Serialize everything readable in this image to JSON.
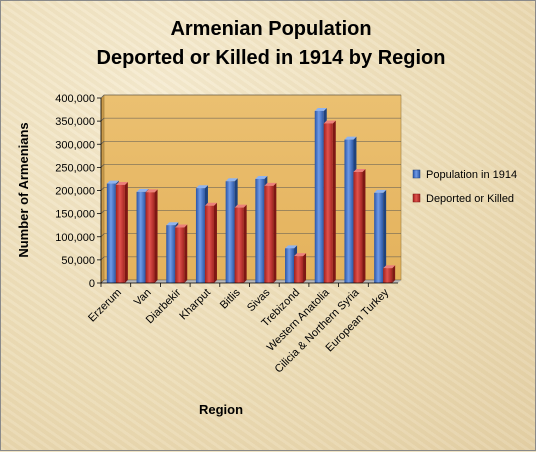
{
  "chart_data": {
    "type": "bar",
    "title_line1": "Armenian Population",
    "title_line2": "Deported or Killed in 1914 by Region",
    "xlabel": "Region",
    "ylabel": "Number of Armenians",
    "ylim": [
      0,
      400000
    ],
    "yticks": [
      "0",
      "50,000",
      "100,000",
      "150,000",
      "200,000",
      "250,000",
      "300,000",
      "350,000",
      "400,000"
    ],
    "categories": [
      "Erzerum",
      "Van",
      "Diarbekir",
      "Kharput",
      "Bitlis",
      "Sivas",
      "Trebizond",
      "Western Anatolia",
      "Cilicia & Northern Syria",
      "European Turkey"
    ],
    "series": [
      {
        "name": "Population in 1914",
        "color": "#3b6fc4",
        "values": [
          215000,
          197000,
          125000,
          205000,
          220000,
          225000,
          75000,
          372000,
          310000,
          195000
        ]
      },
      {
        "name": "Deported or Killed",
        "color": "#c0302c",
        "values": [
          212000,
          196000,
          120000,
          167000,
          163000,
          210000,
          58000,
          345000,
          240000,
          32000
        ]
      }
    ],
    "legend_position": "right",
    "grid": true,
    "plot_background": "#e8b860"
  }
}
